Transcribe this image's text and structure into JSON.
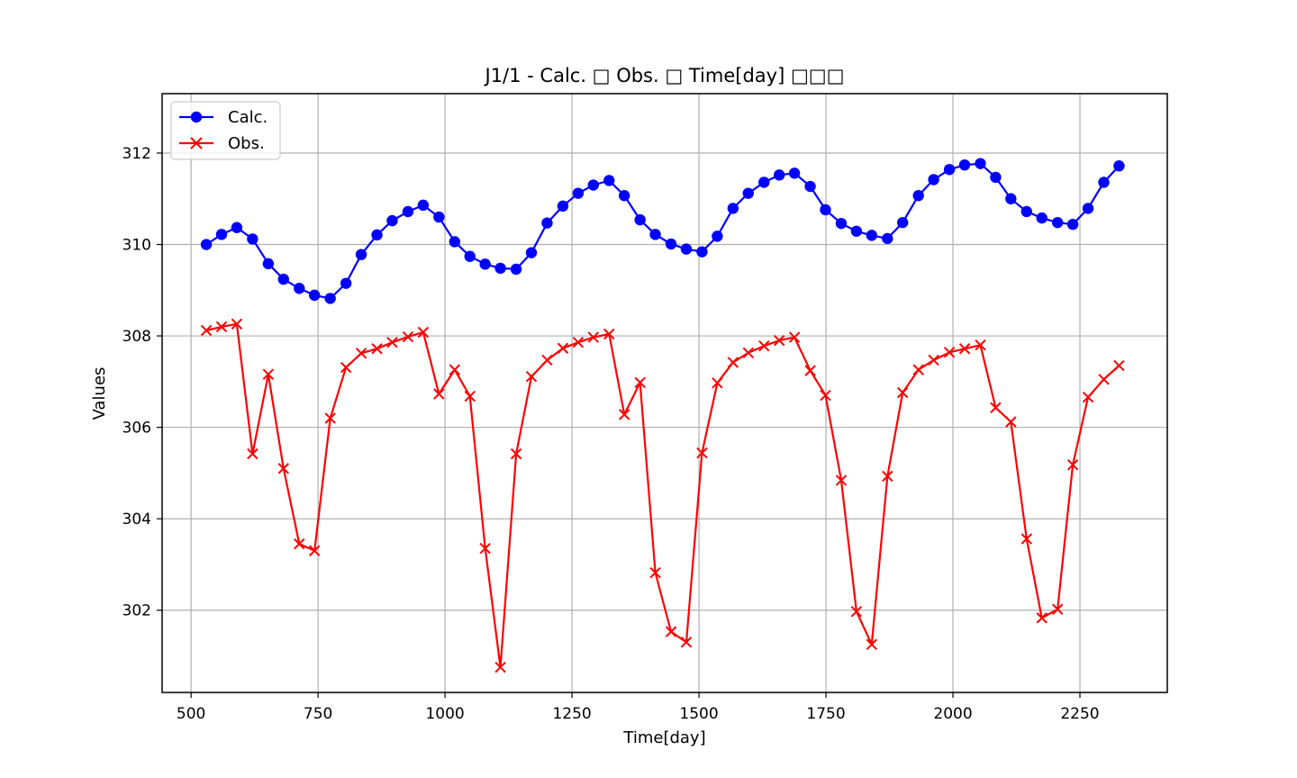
{
  "chart_data": {
    "type": "line",
    "title": "J1/1 - Calc. □ Obs. □ Time[day] □□□",
    "xlabel": "Time[day]",
    "ylabel": "Values",
    "xlim": [
      443,
      2422
    ],
    "ylim": [
      300.2,
      313.3
    ],
    "xticks": [
      500,
      750,
      1000,
      1250,
      1500,
      1750,
      2000,
      2250
    ],
    "yticks": [
      302,
      304,
      306,
      308,
      310,
      312
    ],
    "grid": true,
    "legend_position": "top-left",
    "x": [
      530,
      560,
      590,
      621,
      652,
      682,
      713,
      743,
      774,
      805,
      835,
      866,
      896,
      927,
      957,
      988,
      1019,
      1049,
      1079,
      1109,
      1140,
      1170,
      1201,
      1232,
      1262,
      1292,
      1323,
      1353,
      1384,
      1414,
      1445,
      1475,
      1506,
      1536,
      1567,
      1597,
      1628,
      1658,
      1688,
      1719,
      1749,
      1780,
      1810,
      1840,
      1871,
      1901,
      1932,
      1962,
      1993,
      2023,
      2054,
      2084,
      2114,
      2145,
      2175,
      2206,
      2236,
      2266,
      2297,
      2327
    ],
    "series": [
      {
        "name": "Calc.",
        "color": "#0000ff",
        "marker": "circle",
        "values": [
          310.0,
          310.22,
          310.37,
          310.12,
          309.58,
          309.24,
          309.04,
          308.89,
          308.82,
          309.15,
          309.78,
          310.21,
          310.52,
          310.72,
          310.86,
          310.6,
          310.06,
          309.74,
          309.57,
          309.48,
          309.46,
          309.82,
          310.47,
          310.84,
          311.12,
          311.3,
          311.4,
          311.07,
          310.54,
          310.22,
          310.01,
          309.9,
          309.84,
          310.18,
          310.79,
          311.12,
          311.36,
          311.52,
          311.56,
          311.27,
          310.76,
          310.46,
          310.29,
          310.2,
          310.13,
          310.48,
          311.07,
          311.42,
          311.64,
          311.74,
          311.77,
          311.47,
          311.0,
          310.72,
          310.58,
          310.48,
          310.44,
          310.79,
          311.36,
          311.72
        ]
      },
      {
        "name": "Obs.",
        "color": "#ff0000",
        "marker": "x",
        "values": [
          308.12,
          308.2,
          308.26,
          305.42,
          307.16,
          305.1,
          303.45,
          303.3,
          306.2,
          307.31,
          307.62,
          307.72,
          307.86,
          307.98,
          308.08,
          306.73,
          307.26,
          306.68,
          303.35,
          300.75,
          305.42,
          307.11,
          307.47,
          307.73,
          307.86,
          307.97,
          308.04,
          306.28,
          306.98,
          302.82,
          301.53,
          301.3,
          305.44,
          306.97,
          307.42,
          307.63,
          307.78,
          307.9,
          307.97,
          307.24,
          306.7,
          304.84,
          301.97,
          301.25,
          304.93,
          306.76,
          307.26,
          307.47,
          307.64,
          307.72,
          307.8,
          306.43,
          306.12,
          303.56,
          301.83,
          302.02,
          305.18,
          306.66,
          307.05,
          307.35
        ]
      }
    ]
  }
}
